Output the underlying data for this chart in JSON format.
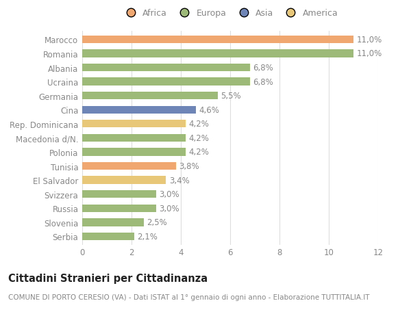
{
  "categories": [
    "Marocco",
    "Romania",
    "Albania",
    "Ucraina",
    "Germania",
    "Cina",
    "Rep. Dominicana",
    "Macedonia d/N.",
    "Polonia",
    "Tunisia",
    "El Salvador",
    "Svizzera",
    "Russia",
    "Slovenia",
    "Serbia"
  ],
  "values": [
    11.0,
    11.0,
    6.8,
    6.8,
    5.5,
    4.6,
    4.2,
    4.2,
    4.2,
    3.8,
    3.4,
    3.0,
    3.0,
    2.5,
    2.1
  ],
  "labels": [
    "11,0%",
    "11,0%",
    "6,8%",
    "6,8%",
    "5,5%",
    "4,6%",
    "4,2%",
    "4,2%",
    "4,2%",
    "3,8%",
    "3,4%",
    "3,0%",
    "3,0%",
    "2,5%",
    "2,1%"
  ],
  "colors": [
    "#f0a870",
    "#9eba78",
    "#9eba78",
    "#9eba78",
    "#9eba78",
    "#6e85b8",
    "#e8c878",
    "#9eba78",
    "#9eba78",
    "#f0a870",
    "#e8c878",
    "#9eba78",
    "#9eba78",
    "#9eba78",
    "#9eba78"
  ],
  "legend_labels": [
    "Africa",
    "Europa",
    "Asia",
    "America"
  ],
  "legend_colors": [
    "#f0a870",
    "#9eba78",
    "#6e85b8",
    "#e8c878"
  ],
  "title": "Cittadini Stranieri per Cittadinanza",
  "subtitle": "COMUNE DI PORTO CERESIO (VA) - Dati ISTAT al 1° gennaio di ogni anno - Elaborazione TUTTITALIA.IT",
  "xlim": [
    0,
    12
  ],
  "xticks": [
    0,
    2,
    4,
    6,
    8,
    10,
    12
  ],
  "background_color": "#ffffff",
  "bar_height": 0.55,
  "label_fontsize": 8.5,
  "ytick_fontsize": 8.5,
  "xtick_fontsize": 8.5,
  "title_fontsize": 10.5,
  "subtitle_fontsize": 7.5,
  "grid_color": "#dddddd",
  "text_color": "#888888"
}
